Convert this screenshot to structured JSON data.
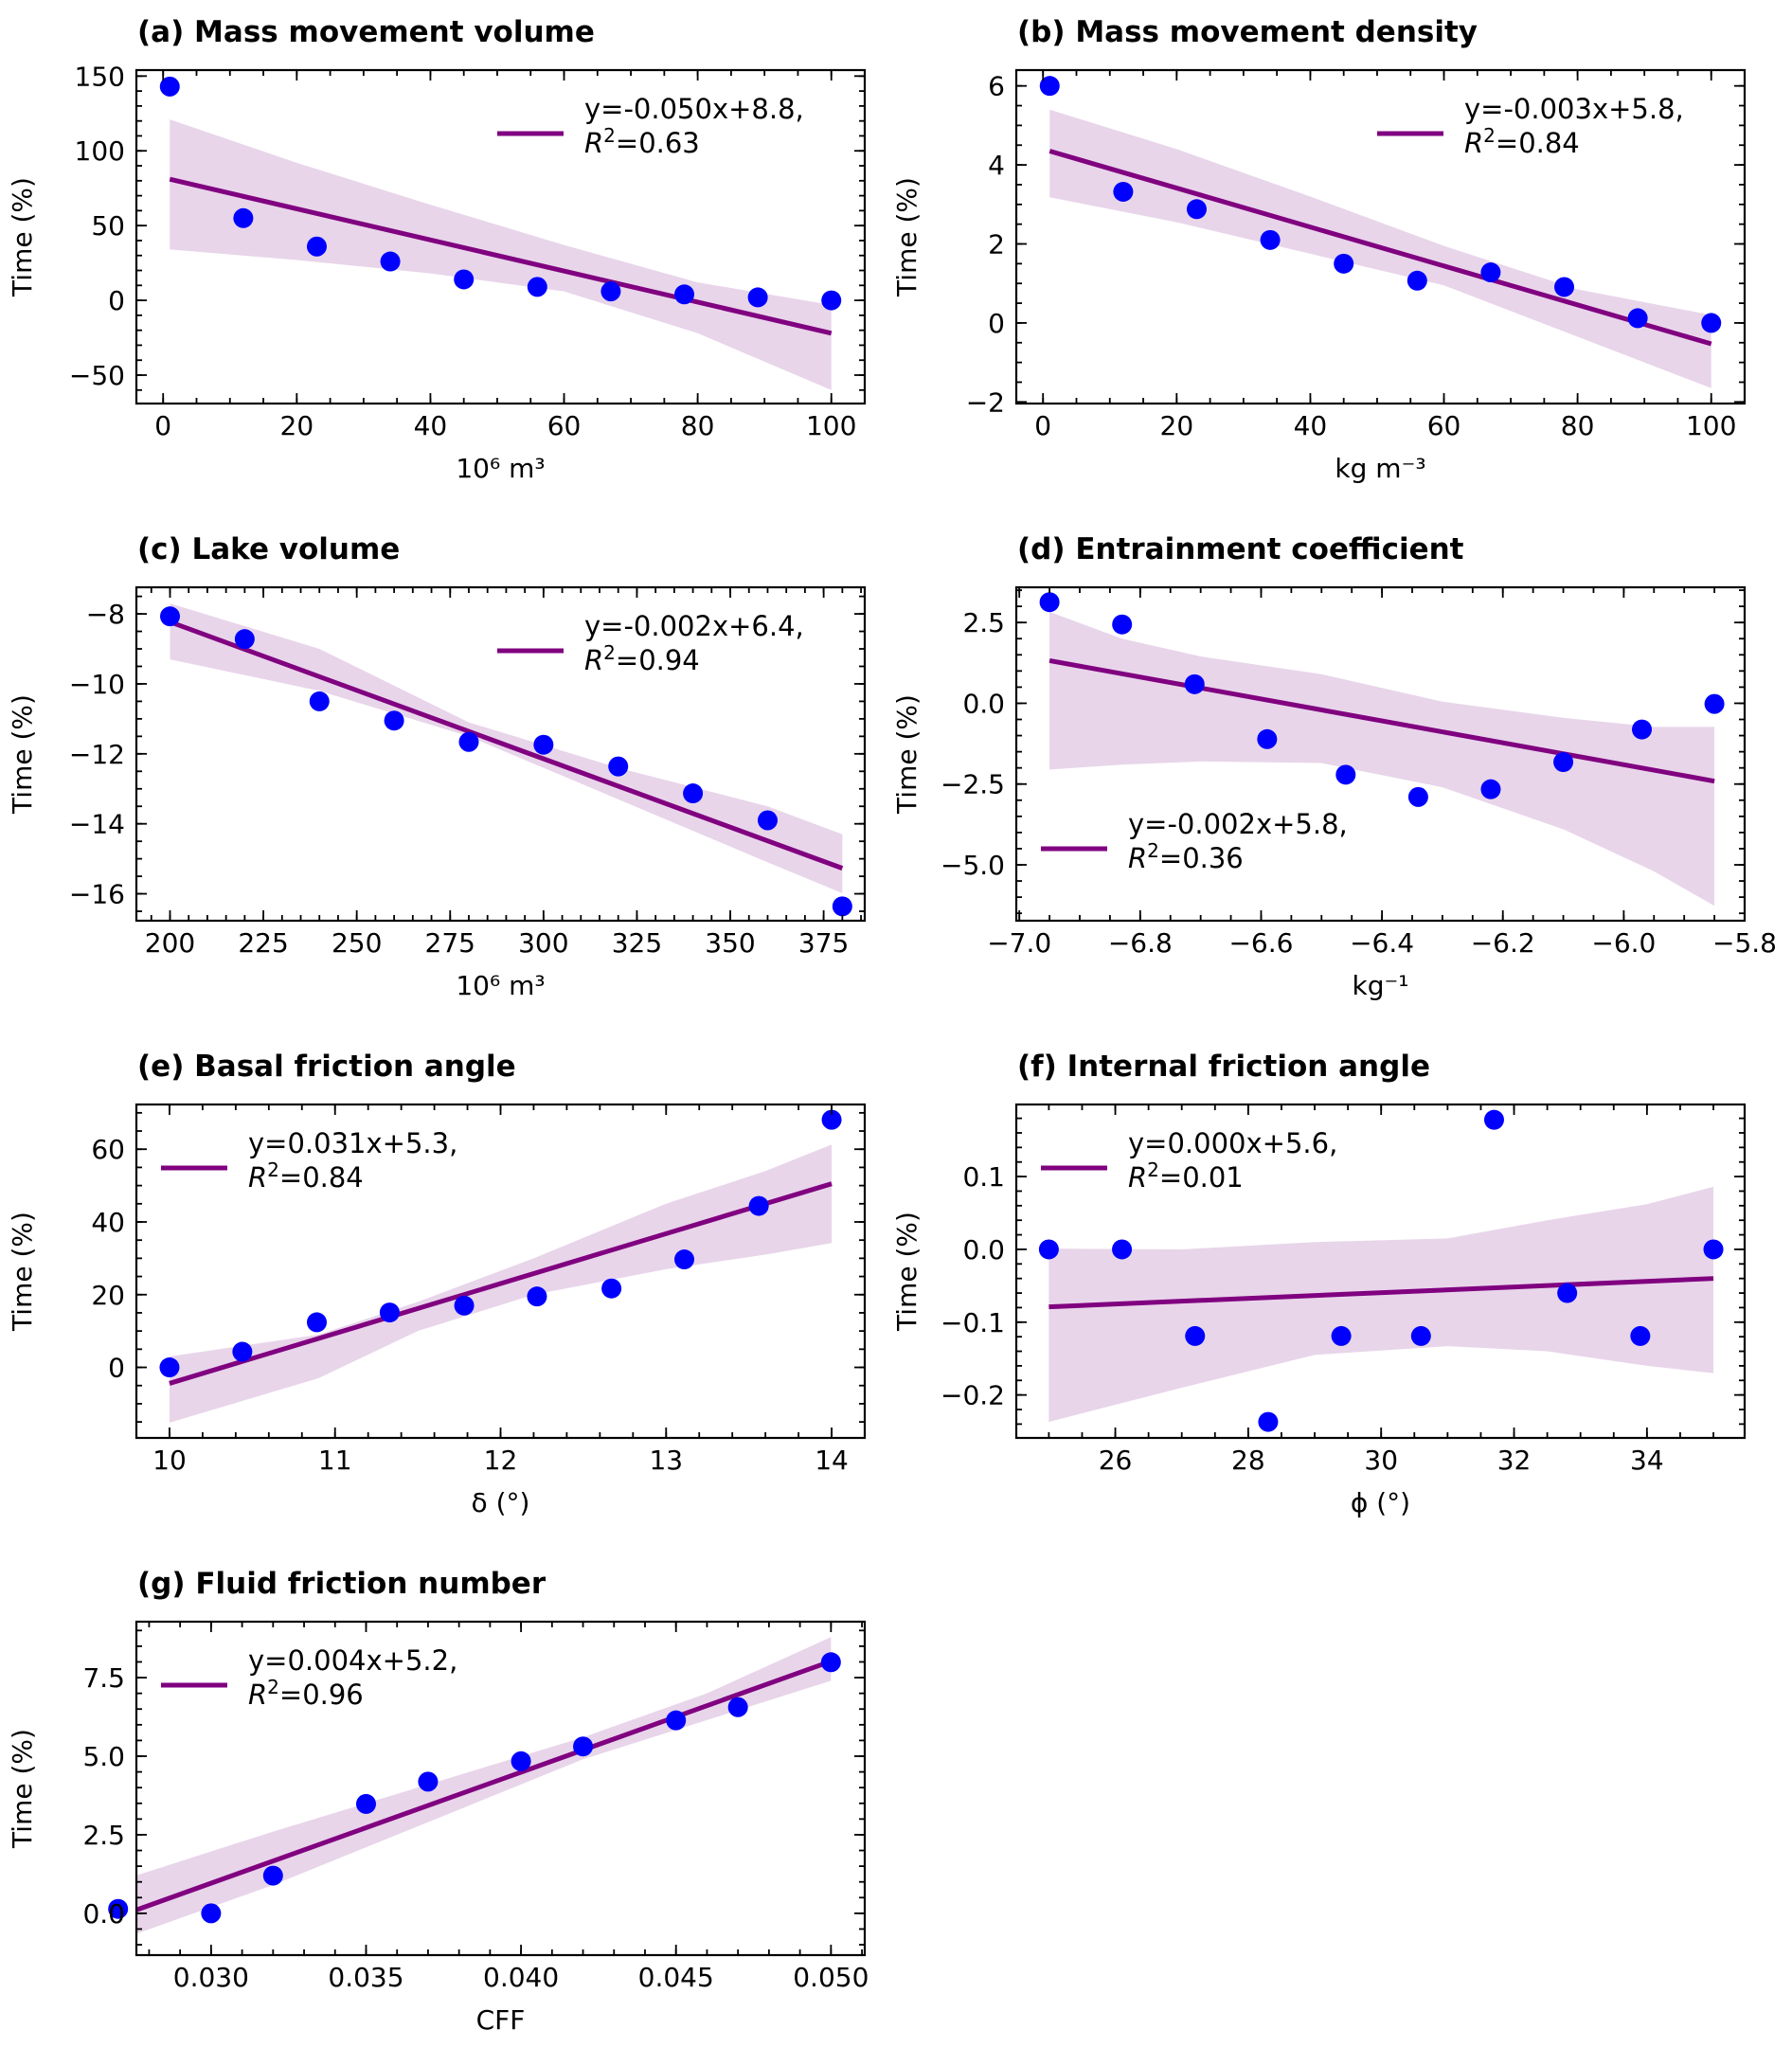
{
  "figure": {
    "colors": {
      "points": "#0000ff",
      "fit_line": "#800080",
      "ci_band": "#e8d5ea",
      "axes": "#000000"
    },
    "ylabel": "Time (%)"
  },
  "chart_data": [
    {
      "type": "scatter",
      "id": "a",
      "title": "(a) Mass movement volume",
      "xlabel": "10⁶  m³",
      "ylabel": "Time (%)",
      "xlim": [
        -4,
        105
      ],
      "ylim": [
        -69,
        154
      ],
      "xticks": [
        0,
        20,
        40,
        60,
        80,
        100
      ],
      "xticklabels": [
        "0",
        "20",
        "40",
        "60",
        "80",
        "100"
      ],
      "yticks": [
        -50,
        0,
        50,
        100,
        150
      ],
      "yticklabels": [
        "−50",
        "0",
        "50",
        "100",
        "150"
      ],
      "x_minor_step": 5,
      "y_minor_step": 10,
      "x": [
        1,
        12,
        23,
        34,
        45,
        56,
        67,
        78,
        89,
        100
      ],
      "y": [
        143,
        55,
        36,
        26,
        14,
        9,
        6,
        4,
        2,
        0
      ],
      "fit": {
        "x": [
          1,
          100
        ],
        "y": [
          81,
          -22
        ]
      },
      "ci_band": {
        "x": [
          1,
          20,
          40,
          60,
          80,
          100
        ],
        "upper": [
          121,
          92,
          64,
          37,
          12,
          -3
        ],
        "lower": [
          34,
          27,
          18,
          6,
          -22,
          -60
        ]
      },
      "legend": {
        "line1": "y=-0.050x+8.8,",
        "line2_prefix": "R",
        "line2_sup": "2",
        "line2_suffix": "=0.63",
        "position": "upper-right"
      }
    },
    {
      "type": "scatter",
      "id": "b",
      "title": "(b) Mass movement density",
      "xlabel": "kg m⁻³",
      "ylabel": "Time (%)",
      "xlim": [
        -4,
        105
      ],
      "ylim": [
        -2.04,
        6.4
      ],
      "xticks": [
        0,
        20,
        40,
        60,
        80,
        100
      ],
      "xticklabels": [
        "0",
        "20",
        "40",
        "60",
        "80",
        "100"
      ],
      "yticks": [
        -2,
        0,
        2,
        4,
        6
      ],
      "yticklabels": [
        "−2",
        "0",
        "2",
        "4",
        "6"
      ],
      "x_minor_step": 5,
      "y_minor_step": 0.5,
      "x": [
        1,
        12,
        23,
        34,
        45,
        56,
        67,
        78,
        89,
        100
      ],
      "y": [
        6.0,
        3.32,
        2.88,
        2.1,
        1.5,
        1.07,
        1.28,
        0.91,
        0.12,
        0.0
      ],
      "fit": {
        "x": [
          1,
          100
        ],
        "y": [
          4.35,
          -0.53
        ]
      },
      "ci_band": {
        "x": [
          1,
          20,
          40,
          60,
          80,
          100
        ],
        "upper": [
          5.4,
          4.4,
          3.2,
          1.95,
          0.85,
          0.2
        ],
        "lower": [
          3.18,
          2.55,
          1.75,
          0.95,
          -0.35,
          -1.65
        ]
      },
      "legend": {
        "line1": "y=-0.003x+5.8,",
        "line2_prefix": "R",
        "line2_sup": "2",
        "line2_suffix": "=0.84",
        "position": "upper-right"
      }
    },
    {
      "type": "scatter",
      "id": "c",
      "title": "(c) Lake volume",
      "xlabel": "10⁶ m³",
      "ylabel": "Time (%)",
      "xlim": [
        191,
        386
      ],
      "ylim": [
        -16.77,
        -7.24
      ],
      "xticks": [
        200,
        225,
        250,
        275,
        300,
        325,
        350,
        375
      ],
      "xticklabels": [
        "200",
        "225",
        "250",
        "275",
        "300",
        "325",
        "350",
        "375"
      ],
      "yticks": [
        -16,
        -14,
        -12,
        -10,
        -8
      ],
      "yticklabels": [
        "−16",
        "−14",
        "−12",
        "−10",
        "−8"
      ],
      "x_minor_step": 5,
      "y_minor_step": 0.5,
      "x": [
        200,
        220,
        240,
        260,
        280,
        300,
        320,
        340,
        360,
        380
      ],
      "y": [
        -8.07,
        -8.72,
        -10.5,
        -11.05,
        -11.66,
        -11.74,
        -12.36,
        -13.13,
        -13.9,
        -16.36
      ],
      "fit": {
        "x": [
          200,
          380
        ],
        "y": [
          -8.23,
          -15.27
        ]
      },
      "ci_band": {
        "x": [
          200,
          240,
          280,
          320,
          360,
          380
        ],
        "upper": [
          -7.7,
          -9.0,
          -11.1,
          -12.4,
          -13.5,
          -14.3
        ],
        "lower": [
          -9.3,
          -10.2,
          -11.5,
          -13.3,
          -15.1,
          -15.98
        ]
      },
      "legend": {
        "line1": "y=-0.002x+6.4,",
        "line2_prefix": "R",
        "line2_sup": "2",
        "line2_suffix": "=0.94",
        "position": "upper-right"
      }
    },
    {
      "type": "scatter",
      "id": "d",
      "title": "(d) Entrainment coefficient",
      "xlabel": "kg⁻¹",
      "ylabel": "Time (%)",
      "xlim": [
        -7.005,
        -5.8
      ],
      "ylim": [
        -6.73,
        3.59
      ],
      "xticks": [
        -7.0,
        -6.8,
        -6.6,
        -6.4,
        -6.2,
        -6.0,
        -5.8
      ],
      "xticklabels": [
        "−7.0",
        "−6.8",
        "−6.6",
        "−6.4",
        "−6.2",
        "−6.0",
        "−5.8"
      ],
      "yticks": [
        -5.0,
        -2.5,
        0.0,
        2.5
      ],
      "yticklabels": [
        "−5.0",
        "−2.5",
        "0.0",
        "2.5"
      ],
      "x_minor_step": 0.05,
      "y_minor_step": 0.5,
      "x": [
        -6.95,
        -6.83,
        -6.71,
        -6.59,
        -6.46,
        -6.34,
        -6.22,
        -6.1,
        -5.97,
        -5.85
      ],
      "y": [
        3.13,
        2.44,
        0.59,
        -1.11,
        -2.21,
        -2.9,
        -2.66,
        -1.82,
        -0.81,
        -0.02
      ],
      "fit": {
        "x": [
          -6.95,
          -5.85
        ],
        "y": [
          1.32,
          -2.41
        ]
      },
      "ci_band": {
        "x": [
          -6.95,
          -6.83,
          -6.7,
          -6.5,
          -6.3,
          -6.1,
          -5.95,
          -5.85
        ],
        "upper": [
          2.83,
          2.0,
          1.45,
          0.9,
          0.05,
          -0.45,
          -0.73,
          -0.73
        ],
        "lower": [
          -2.05,
          -1.9,
          -1.8,
          -1.85,
          -2.6,
          -3.9,
          -5.2,
          -6.27
        ]
      },
      "legend": {
        "line1": "y=-0.002x+5.8,",
        "line2_prefix": "R",
        "line2_sup": "2",
        "line2_suffix": "=0.36",
        "position": "lower-left"
      }
    },
    {
      "type": "scatter",
      "id": "e",
      "title": "(e) Basal friction angle",
      "xlabel": "δ (°)",
      "ylabel": "Time (%)",
      "xlim": [
        9.8,
        14.2
      ],
      "ylim": [
        -19.4,
        72.3
      ],
      "xticks": [
        10,
        11,
        12,
        13,
        14
      ],
      "xticklabels": [
        "10",
        "11",
        "12",
        "13",
        "14"
      ],
      "yticks": [
        0,
        20,
        40,
        60
      ],
      "yticklabels": [
        "0",
        "20",
        "40",
        "60"
      ],
      "x_minor_step": 0.2,
      "y_minor_step": 5,
      "x": [
        10,
        10.44,
        10.89,
        11.33,
        11.78,
        12.22,
        12.67,
        13.11,
        13.56,
        14
      ],
      "y": [
        0,
        4.3,
        12.4,
        15.1,
        17.0,
        19.5,
        21.7,
        29.7,
        44.4,
        68.1
      ],
      "fit": {
        "x": [
          10,
          14
        ],
        "y": [
          -4.4,
          50.5
        ]
      },
      "ci_band": {
        "x": [
          10,
          10.9,
          11.5,
          12.2,
          13,
          13.6,
          14
        ],
        "upper": [
          3,
          9,
          18,
          30,
          45,
          54,
          61.3
        ],
        "lower": [
          -15.2,
          -3,
          10,
          20,
          27,
          31,
          34.2
        ]
      },
      "legend": {
        "line1": "y=0.031x+5.3,",
        "line2_prefix": "R",
        "line2_sup": "2",
        "line2_suffix": "=0.84",
        "position": "upper-left"
      }
    },
    {
      "type": "scatter",
      "id": "f",
      "title": "(f) Internal friction angle",
      "xlabel": "ϕ (°)",
      "ylabel": "Time (%)",
      "xlim": [
        24.51,
        35.47
      ],
      "ylim": [
        -0.259,
        0.199
      ],
      "xticks": [
        26,
        28,
        30,
        32,
        34
      ],
      "xticklabels": [
        "26",
        "28",
        "30",
        "32",
        "34"
      ],
      "yticks": [
        -0.2,
        -0.1,
        0.0,
        0.1
      ],
      "yticklabels": [
        "−0.2",
        "−0.1",
        "0.0",
        "0.1"
      ],
      "x_minor_step": 0.5,
      "y_minor_step": 0.02,
      "x": [
        25.0,
        26.1,
        27.2,
        28.3,
        29.4,
        30.6,
        31.7,
        32.8,
        33.9,
        35.0
      ],
      "y": [
        0,
        0,
        -0.119,
        -0.237,
        -0.119,
        -0.119,
        0.178,
        -0.06,
        -0.119,
        0
      ],
      "fit": {
        "x": [
          25,
          35
        ],
        "y": [
          -0.079,
          -0.04
        ]
      },
      "ci_band": {
        "x": [
          25,
          27,
          29,
          31,
          32.5,
          34,
          35
        ],
        "upper": [
          0.001,
          0.0,
          0.01,
          0.015,
          0.04,
          0.062,
          0.086
        ],
        "lower": [
          -0.237,
          -0.19,
          -0.145,
          -0.133,
          -0.14,
          -0.16,
          -0.17
        ]
      },
      "legend": {
        "line1": "y=0.000x+5.6,",
        "line2_prefix": "R",
        "line2_sup": "2",
        "line2_suffix": "=0.01",
        "position": "upper-left"
      }
    },
    {
      "type": "scatter",
      "id": "g",
      "title": "(g) Fluid friction number",
      "xlabel": "CFF",
      "ylabel": "Time (%)",
      "xlim": [
        0.02759,
        0.05109
      ],
      "ylim": [
        -1.33,
        9.28
      ],
      "xticks": [
        0.03,
        0.035,
        0.04,
        0.045,
        0.05
      ],
      "xticklabels": [
        "0.030",
        "0.035",
        "0.040",
        "0.045",
        "0.050"
      ],
      "yticks": [
        0.0,
        2.5,
        5.0,
        7.5
      ],
      "yticklabels": [
        "0.0",
        "2.5",
        "5.0",
        "7.5"
      ],
      "x_minor_step": 0.001,
      "y_minor_step": 0.5,
      "x": [
        0.027,
        0.03,
        0.032,
        0.035,
        0.037,
        0.04,
        0.042,
        0.045,
        0.047,
        0.05
      ],
      "y": [
        0.14,
        0.0,
        1.2,
        3.48,
        4.19,
        4.84,
        5.31,
        6.14,
        6.56,
        7.99
      ],
      "fit": {
        "x": [
          0.027,
          0.05
        ],
        "y": [
          -0.1,
          8.02
        ]
      },
      "ci_band": {
        "x": [
          0.027,
          0.032,
          0.037,
          0.042,
          0.046,
          0.05
        ],
        "upper": [
          1.02,
          2.6,
          4.1,
          5.6,
          7.0,
          8.79
        ],
        "lower": [
          -0.86,
          0.9,
          2.9,
          4.9,
          6.15,
          7.4
        ]
      },
      "legend": {
        "line1": "y=0.004x+5.2,",
        "line2_prefix": "R",
        "line2_sup": "2",
        "line2_suffix": "=0.96",
        "position": "upper-left"
      }
    }
  ]
}
